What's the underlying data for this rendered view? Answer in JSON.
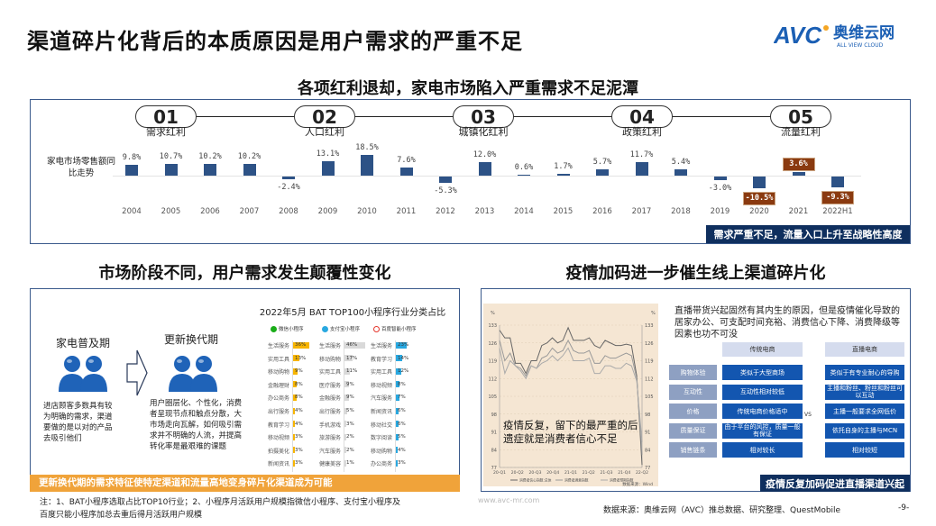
{
  "title": "渠道碎片化背后的本质原因是用户需求的严重不足",
  "logo": {
    "text": "AVC",
    "cn": "奥维云网",
    "en": "ALL VIEW CLOUD",
    "accent": "#1b5fb4",
    "dot": "#f5a623"
  },
  "top": {
    "headline": "各项红利退却，家电市场陷入严重需求不足泥潭",
    "row_label": "家电市场零售额同比走势",
    "phases": [
      {
        "num": "01",
        "label": "需求红利"
      },
      {
        "num": "02",
        "label": "人口红利"
      },
      {
        "num": "03",
        "label": "城镇化红利"
      },
      {
        "num": "04",
        "label": "政策红利"
      },
      {
        "num": "05",
        "label": "流量红利"
      }
    ],
    "banner": "需求严重不足，流量入口上升至战略性高度"
  },
  "chart_data": {
    "type": "bar",
    "categories": [
      "2004",
      "2005",
      "2006",
      "2007",
      "2008",
      "2009",
      "2010",
      "2011",
      "2012",
      "2013",
      "2014",
      "2015",
      "2016",
      "2017",
      "2018",
      "2019",
      "2020",
      "2021",
      "2022H1"
    ],
    "values": [
      9.8,
      10.7,
      10.2,
      10.2,
      -2.4,
      13.1,
      18.5,
      7.6,
      -5.3,
      12.0,
      0.6,
      1.7,
      5.7,
      11.7,
      5.4,
      -3.0,
      -10.5,
      3.6,
      -9.3
    ],
    "labels": [
      "9.8%",
      "10.7%",
      "10.2%",
      "10.2%",
      "-2.4%",
      "13.1%",
      "18.5%",
      "7.6%",
      "-5.3%",
      "12.0%",
      "0.6%",
      "1.7%",
      "5.7%",
      "11.7%",
      "5.4%",
      "-3.0%",
      "-10.5%",
      "3.6%",
      "-9.3%"
    ],
    "highlighted": [
      "2020",
      "2021",
      "2022H1"
    ],
    "bar_color": "#2d5286",
    "highlight_color": "#8a3a10"
  },
  "left": {
    "headline": "市场阶段不同，用户需求发生颠覆性变化",
    "stage1": {
      "title": "家电普及期",
      "desc": "进店顾客多数具有较为明确的需求，渠道要做的是以对的产品去吸引他们"
    },
    "stage2": {
      "title": "更新换代期",
      "desc": "用户圈层化、个性化，消费者呈现节点和触点分散，大市场走向瓦解，如何吸引需求并不明确的人流，并提高转化率是最艰难的课题"
    },
    "mp": {
      "title": "2022年5月 BAT TOP100小程序行业分类占比",
      "platforms": [
        {
          "name": "微信小程序",
          "color": "#f7b500",
          "items": [
            [
              "生活服务",
              "36%"
            ],
            [
              "实用工具",
              "13%"
            ],
            [
              "移动购物",
              "9%"
            ],
            [
              "金融理财",
              "8%"
            ],
            [
              "办公商务",
              "8%"
            ],
            [
              "出行服务",
              "4%"
            ],
            [
              "教育学习",
              "4%"
            ],
            [
              "移动视频",
              "3%"
            ],
            [
              "拍摄美化",
              "3%"
            ],
            [
              "新闻资讯",
              "3%"
            ]
          ]
        },
        {
          "name": "支付宝小程序",
          "color": "#d9d9d9",
          "items": [
            [
              "生活服务",
              "46%"
            ],
            [
              "移动购物",
              "17%"
            ],
            [
              "实用工具",
              "11%"
            ],
            [
              "医疗服务",
              "9%"
            ],
            [
              "金融服务",
              "9%"
            ],
            [
              "出行服务",
              "5%"
            ],
            [
              "手机游戏",
              "3%"
            ],
            [
              "旅游服务",
              "2%"
            ],
            [
              "汽车服务",
              "2%"
            ],
            [
              "健康美容",
              "1%"
            ]
          ]
        },
        {
          "name": "百度智能小程序",
          "color": "#29a8e0",
          "items": [
            [
              "生活服务",
              "23%"
            ],
            [
              "教育学习",
              "14%"
            ],
            [
              "实用工具",
              "12%"
            ],
            [
              "移动视频",
              "8%"
            ],
            [
              "汽车服务",
              "7%"
            ],
            [
              "新闻资讯",
              "6%"
            ],
            [
              "移动社交",
              "6%"
            ],
            [
              "数字阅读",
              "5%"
            ],
            [
              "移动购物",
              "4%"
            ],
            [
              "办公商务",
              "3%"
            ]
          ]
        }
      ]
    },
    "banner": "更新换代期的需求特征使特定渠道和流量高地变身碎片化渠道成为可能"
  },
  "right": {
    "headline": "疫情加码进一步催生线上渠道碎片化",
    "line_chart": {
      "unit": "%",
      "yticks": [
        "133",
        "126",
        "119",
        "112",
        "105",
        "98",
        "91",
        "84",
        "77"
      ],
      "xticks": [
        "20-Q1",
        "20-Q2",
        "20-Q3",
        "20-Q4",
        "21-Q1",
        "21-Q2",
        "21-Q3",
        "21-Q4",
        "22-Q2"
      ],
      "series": [
        {
          "name": "消费者信心指数:总体",
          "values": [
            131,
            128,
            128,
            118,
            118,
            114,
            119,
            119,
            125,
            126,
            128,
            126,
            127,
            132,
            127,
            127,
            127,
            128,
            125,
            124,
            127,
            126,
            125,
            125,
            125.5,
            125,
            113,
            78
          ]
        },
        {
          "name": "消费者满意指数",
          "values": [
            127,
            119,
            122,
            117,
            116,
            113,
            117,
            116,
            120,
            121,
            124,
            122,
            123,
            127,
            123,
            122,
            122,
            123,
            118,
            118,
            121,
            120,
            120,
            121,
            122,
            121,
            112,
            82
          ]
        },
        {
          "name": "消费者预期指数",
          "values": [
            124,
            114,
            119,
            117,
            115,
            112,
            117,
            116,
            118,
            119,
            121,
            119,
            121,
            124,
            119,
            119,
            119,
            120,
            114,
            114,
            117,
            117,
            116,
            116,
            118,
            117,
            111,
            87
          ]
        }
      ],
      "source": "数据来源：Wind",
      "overlay": "疫情反复，留下的最严重的后遗症就是消费者信心不足",
      "bg": "#f5e6d3"
    },
    "intro": "直播带货兴起固然有其内生的原因，但是疫情催化导致的居家办公、可支配时间充裕、消费信心下降、消费降级等因素也功不可没",
    "compare": {
      "col1": "传统电商",
      "col2": "直播电商",
      "vs": "VS",
      "rows": [
        {
          "dim": "购物体验",
          "a": "类似于大型商场",
          "b": "类似于有专业耐心的导购"
        },
        {
          "dim": "互动性",
          "a": "互动性相对较低",
          "b": "主播和粉丝、粉丝和粉丝可以互动"
        },
        {
          "dim": "价格",
          "a": "传统电商价格适中",
          "b": "主播一般要求全网低价"
        },
        {
          "dim": "质量保证",
          "a": "由于平台的风控，质量一般有保证",
          "b": "依托自身的主播与MCN"
        },
        {
          "dim": "销售链条",
          "a": "相对较长",
          "b": "相对较短"
        }
      ]
    },
    "banner": "疫情反复加码促进直播渠道兴起"
  },
  "footer": {
    "note1": "注：1、BAT小程序选取占比TOP10行业；2、小程序月活跃用户规模指微信小程序、支付宝小程序及",
    "note2": "百度只能小程序加总去重后得月活跃用户规模",
    "source": "数据来源：奥维云网（AVC）推总数据、研究整理、QuestMobile",
    "page": "-9-",
    "watermark": "www.avc-mr.com"
  }
}
